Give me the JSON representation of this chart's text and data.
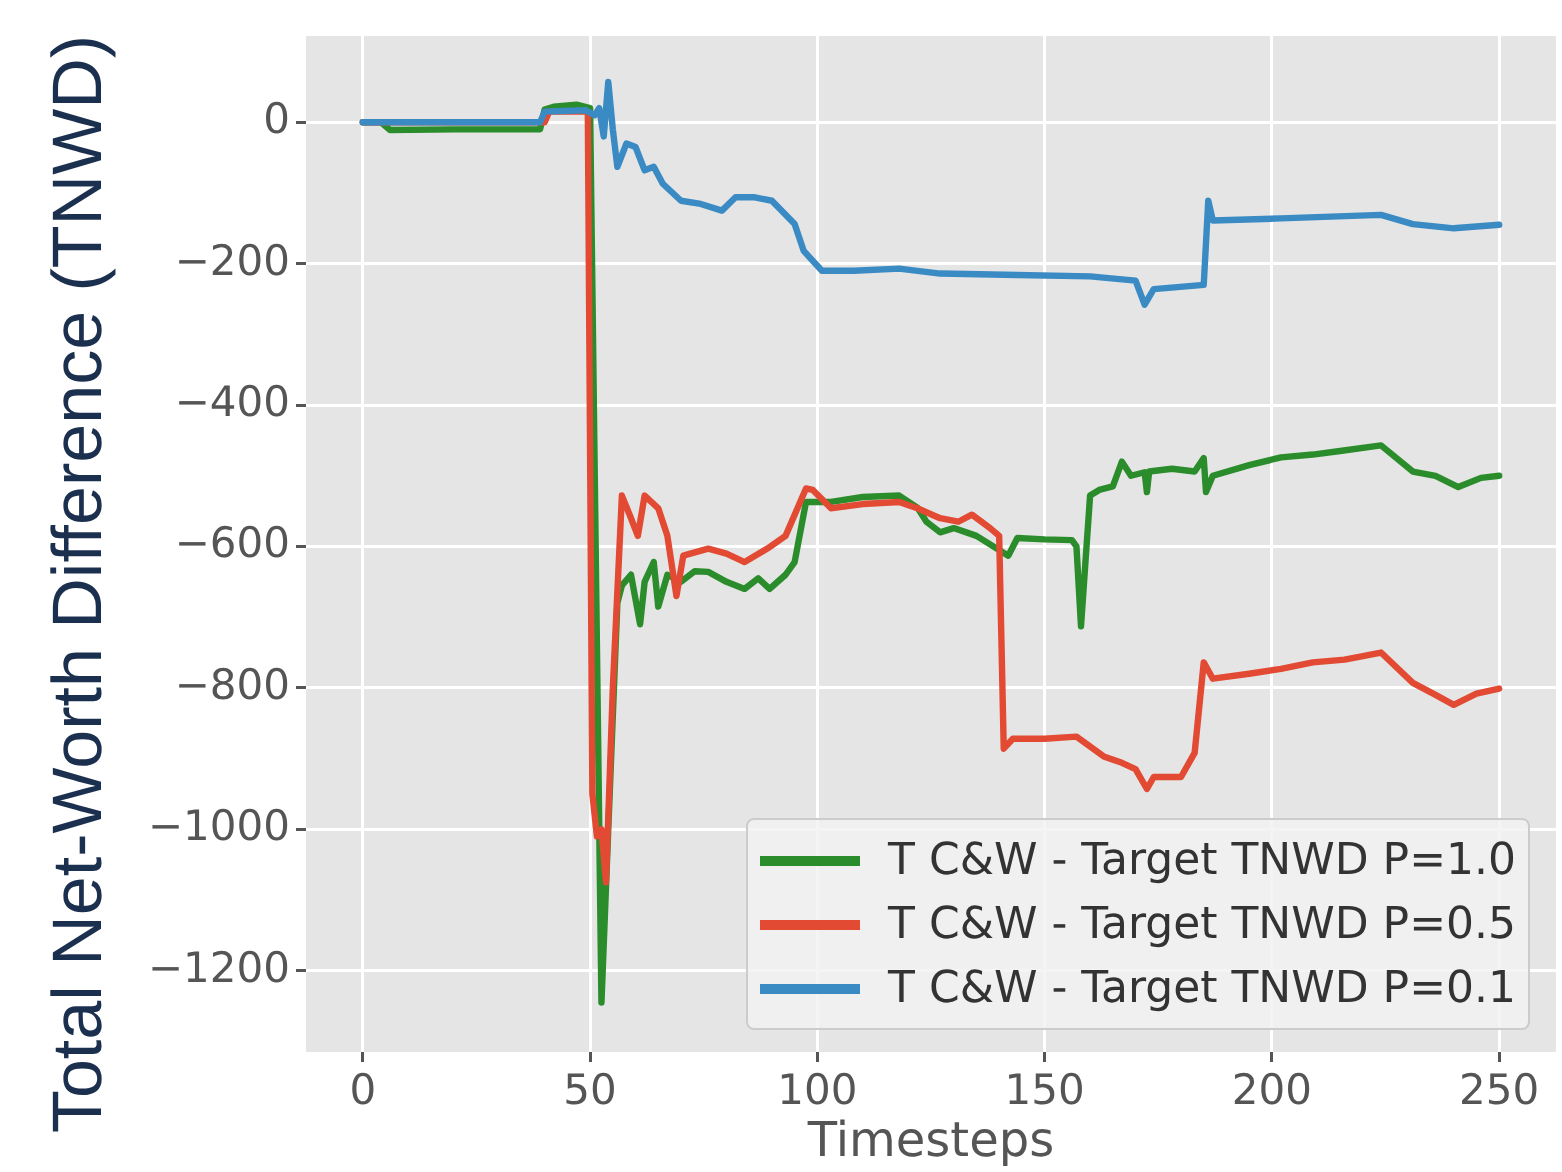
{
  "chart_data": {
    "type": "line",
    "xlabel": "Timesteps",
    "ylabel": "Total Net-Worth Difference (TNWD)",
    "xlim": [
      -12.5,
      262.5
    ],
    "ylim": [
      -1315,
      122
    ],
    "xticks": [
      0,
      50,
      100,
      150,
      200,
      250
    ],
    "yticks": [
      0,
      {
        "value": -200,
        "label": "−200"
      },
      {
        "value": -400,
        "label": "−400"
      },
      {
        "value": -600,
        "label": "−600"
      },
      {
        "value": -800,
        "label": "−800"
      },
      {
        "value": -1000,
        "label": "−1000"
      },
      {
        "value": -1200,
        "label": "−1200"
      }
    ],
    "grid": true,
    "legend": "bottom right",
    "marker": "none",
    "line_style": "solid",
    "series": [
      {
        "name": "T C&W - Target TNWD P=1.0",
        "color": "#2a8c2a",
        "x": [
          0,
          4,
          6,
          20,
          39,
          40,
          42,
          47,
          50,
          52.5,
          54,
          56,
          57,
          59,
          61,
          62,
          64,
          65,
          67,
          70,
          73,
          76,
          80,
          84,
          87,
          89.5,
          93,
          95,
          97.5,
          103,
          110,
          118,
          122,
          124,
          127,
          130,
          135,
          142,
          144,
          150,
          156,
          157,
          158,
          159,
          160,
          162,
          165,
          167,
          169,
          172,
          172.5,
          173,
          178,
          183,
          185,
          185.5,
          187,
          195,
          202,
          209,
          215,
          224,
          231,
          236,
          241,
          246,
          250
        ],
        "values": [
          0,
          0,
          -11,
          -10,
          -10,
          18,
          22,
          25,
          20,
          -1245,
          -1000,
          -680,
          -655,
          -640,
          -710,
          -650,
          -622,
          -685,
          -640,
          -650,
          -635,
          -636,
          -650,
          -660,
          -645,
          -660,
          -640,
          -622,
          -537,
          -537,
          -530,
          -528,
          -545,
          -565,
          -580,
          -574,
          -585,
          -613,
          -588,
          -590,
          -591,
          -600,
          -713,
          -620,
          -528,
          -520,
          -515,
          -480,
          -500,
          -495,
          -523,
          -494,
          -490,
          -494,
          -475,
          -523,
          -500,
          -485,
          -474,
          -470,
          -465,
          -457,
          -494,
          -500,
          -516,
          -503,
          -500
        ]
      },
      {
        "name": "T C&W - Target TNWD P=0.5",
        "color": "#e24a33",
        "x": [
          0,
          40,
          41,
          49.5,
          50.5,
          51.5,
          52.5,
          53.5,
          55,
          57,
          59,
          60.5,
          62,
          65,
          67,
          69,
          70.5,
          76,
          80,
          84,
          89,
          93,
          97.5,
          99,
          103,
          110,
          118,
          122,
          127,
          131,
          134,
          138,
          140,
          141,
          143,
          150,
          157,
          163,
          167,
          170,
          172.5,
          174,
          180,
          183,
          185,
          187,
          195,
          202,
          209,
          216,
          224,
          231,
          236,
          240,
          245,
          250
        ],
        "values": [
          0,
          0,
          15,
          15,
          -950,
          -1010,
          -1000,
          -1075,
          -800,
          -528,
          -560,
          -585,
          -528,
          -546,
          -585,
          -670,
          -613,
          -603,
          -610,
          -622,
          -603,
          -585,
          -518,
          -520,
          -546,
          -540,
          -537,
          -546,
          -560,
          -565,
          -555,
          -574,
          -585,
          -886,
          -872,
          -872,
          -869,
          -897,
          -906,
          -915,
          -943,
          -926,
          -926,
          -892,
          -764,
          -787,
          -780,
          -773,
          -764,
          -760,
          -750,
          -793,
          -810,
          -824,
          -808,
          -801
        ]
      },
      {
        "name": "T C&W - Target TNWD P=0.1",
        "color": "#3a8ac4",
        "x": [
          0,
          39,
          40,
          49,
          51,
          52,
          53,
          54,
          55,
          56,
          58,
          60,
          62,
          64,
          66,
          70,
          74,
          79,
          82,
          86,
          90,
          95,
          97,
          101,
          108,
          118,
          127,
          144,
          160,
          170,
          172,
          174,
          185,
          186,
          187,
          202,
          224,
          231,
          240,
          250
        ],
        "values": [
          0,
          0,
          15,
          17,
          10,
          20,
          -20,
          57,
          -10,
          -63,
          -30,
          -35,
          -68,
          -63,
          -87,
          -111,
          -115,
          -125,
          -106,
          -106,
          -111,
          -144,
          -182,
          -210,
          -210,
          -207,
          -214,
          -216,
          -218,
          -224,
          -258,
          -236,
          -230,
          -111,
          -139,
          -136,
          -131,
          -144,
          -150,
          -145
        ]
      }
    ]
  }
}
